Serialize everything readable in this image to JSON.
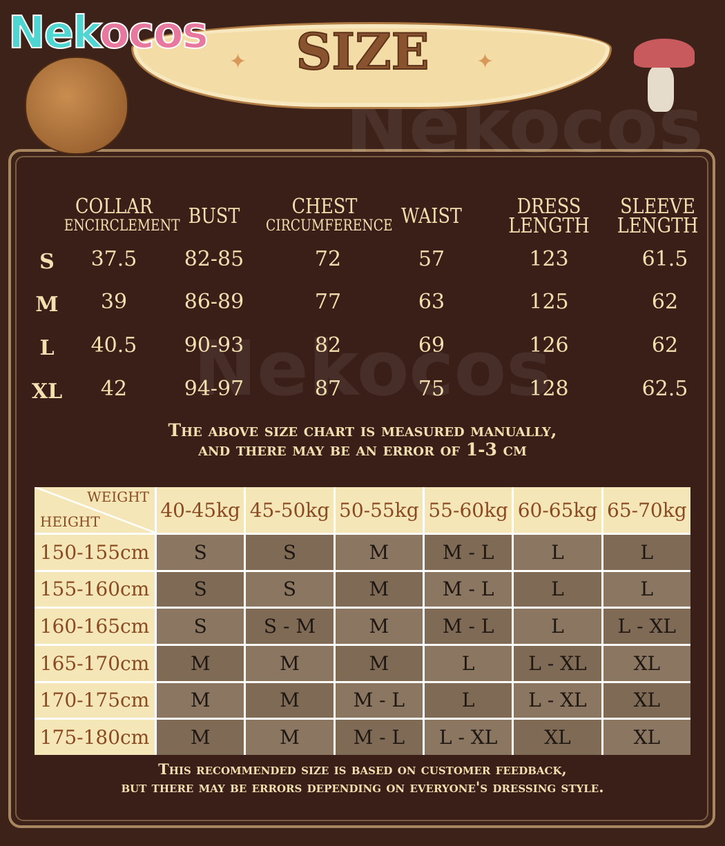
{
  "brand": {
    "logo_a": "Nek",
    "logo_b": "ocos",
    "watermark": "Nekocos"
  },
  "title": "SIZE",
  "measurements": {
    "headers": {
      "collar": [
        "COLLAR",
        "ENCIRCLEMENT"
      ],
      "bust": "BUST",
      "chest": [
        "CHEST",
        "CIRCUMFERENCE"
      ],
      "waist": "WAIST",
      "dress": [
        "DRESS",
        "LENGTH"
      ],
      "sleeve": [
        "SLEEVE",
        "LENGTH"
      ]
    },
    "rows": [
      {
        "size": "S",
        "collar": "37.5",
        "bust": "82-85",
        "chest": "72",
        "waist": "57",
        "dress": "123",
        "sleeve": "61.5"
      },
      {
        "size": "M",
        "collar": "39",
        "bust": "86-89",
        "chest": "77",
        "waist": "63",
        "dress": "125",
        "sleeve": "62"
      },
      {
        "size": "L",
        "collar": "40.5",
        "bust": "90-93",
        "chest": "82",
        "waist": "69",
        "dress": "126",
        "sleeve": "62"
      },
      {
        "size": "XL",
        "collar": "42",
        "bust": "94-97",
        "chest": "87",
        "waist": "75",
        "dress": "128",
        "sleeve": "62.5"
      }
    ]
  },
  "note1": [
    "The above size chart is measured manually,",
    "and there may be an error of 1-3 cm"
  ],
  "recommend": {
    "corner_weight": "WEIGHT",
    "corner_height": "HEIGHT",
    "weights": [
      "40-45kg",
      "45-50kg",
      "50-55kg",
      "55-60kg",
      "60-65kg",
      "65-70kg"
    ],
    "rows": [
      {
        "height": "150-155cm",
        "sizes": [
          "S",
          "S",
          "M",
          "M - L",
          "L",
          "L"
        ]
      },
      {
        "height": "155-160cm",
        "sizes": [
          "S",
          "S",
          "M",
          "M - L",
          "L",
          "L"
        ]
      },
      {
        "height": "160-165cm",
        "sizes": [
          "S",
          "S - M",
          "M",
          "M - L",
          "L",
          "L - XL"
        ]
      },
      {
        "height": "165-170cm",
        "sizes": [
          "M",
          "M",
          "M",
          "L",
          "L - XL",
          "XL"
        ]
      },
      {
        "height": "170-175cm",
        "sizes": [
          "M",
          "M",
          "M - L",
          "L",
          "L - XL",
          "XL"
        ]
      },
      {
        "height": "175-180cm",
        "sizes": [
          "M",
          "M",
          "M - L",
          "L - XL",
          "XL",
          "XL"
        ]
      }
    ]
  },
  "note2": [
    "This recommended size is based on customer feedback,",
    "but there may be errors depending on everyone's dressing style."
  ]
}
